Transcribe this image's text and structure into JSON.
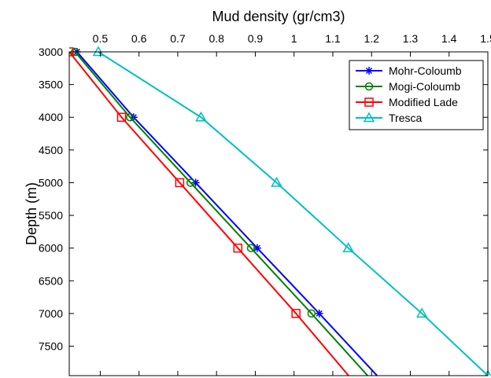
{
  "chart_data": {
    "type": "line",
    "title": "",
    "xlabel": "Mud density (gr/cm3)",
    "ylabel": "Depth (m)",
    "xlim": [
      0.42,
      1.5
    ],
    "ylim": [
      3000,
      7950
    ],
    "x_axis_position": "top",
    "y_axis_inverted": true,
    "x_ticks": [
      0.5,
      0.6,
      0.7,
      0.8,
      0.9,
      1,
      1.1,
      1.2,
      1.3,
      1.4,
      1.5
    ],
    "x_tick_labels": [
      "0.5",
      "0.6",
      "0.7",
      "0.8",
      "0.9",
      "1",
      "1.1",
      "1.2",
      "1.3",
      "1.4",
      "1.5"
    ],
    "y_ticks": [
      3000,
      3500,
      4000,
      4500,
      5000,
      5500,
      6000,
      6500,
      7000,
      7500
    ],
    "y_tick_labels": [
      "3000",
      "3500",
      "4000",
      "4500",
      "5000",
      "5500",
      "6000",
      "6500",
      "7000",
      "7500"
    ],
    "grid": false,
    "legend_position": "top-right",
    "series": [
      {
        "name": "Mohr-Coloumb",
        "color": "#0000ff",
        "marker": "star",
        "x": [
          0.44,
          0.586,
          0.746,
          0.905,
          1.065,
          1.23
        ],
        "y": [
          3000,
          4000,
          5000,
          6000,
          7000,
          8050
        ]
      },
      {
        "name": "Mogi-Coloumb",
        "color": "#008000",
        "marker": "circle",
        "x": [
          0.435,
          0.577,
          0.733,
          0.889,
          1.045,
          1.205
        ],
        "y": [
          3000,
          4000,
          5000,
          6000,
          7000,
          8050
        ]
      },
      {
        "name": "Modified Lade",
        "color": "#ff0000",
        "marker": "square",
        "x": [
          0.42,
          0.555,
          0.705,
          0.855,
          1.005,
          1.155
        ],
        "y": [
          3000,
          4000,
          5000,
          6000,
          7000,
          8050
        ]
      },
      {
        "name": "Tresca",
        "color": "#00bfbf",
        "marker": "triangle",
        "x": [
          0.495,
          0.76,
          0.955,
          1.14,
          1.33,
          1.5
        ],
        "y": [
          3000,
          4000,
          5000,
          6000,
          7000,
          7950
        ]
      }
    ]
  }
}
